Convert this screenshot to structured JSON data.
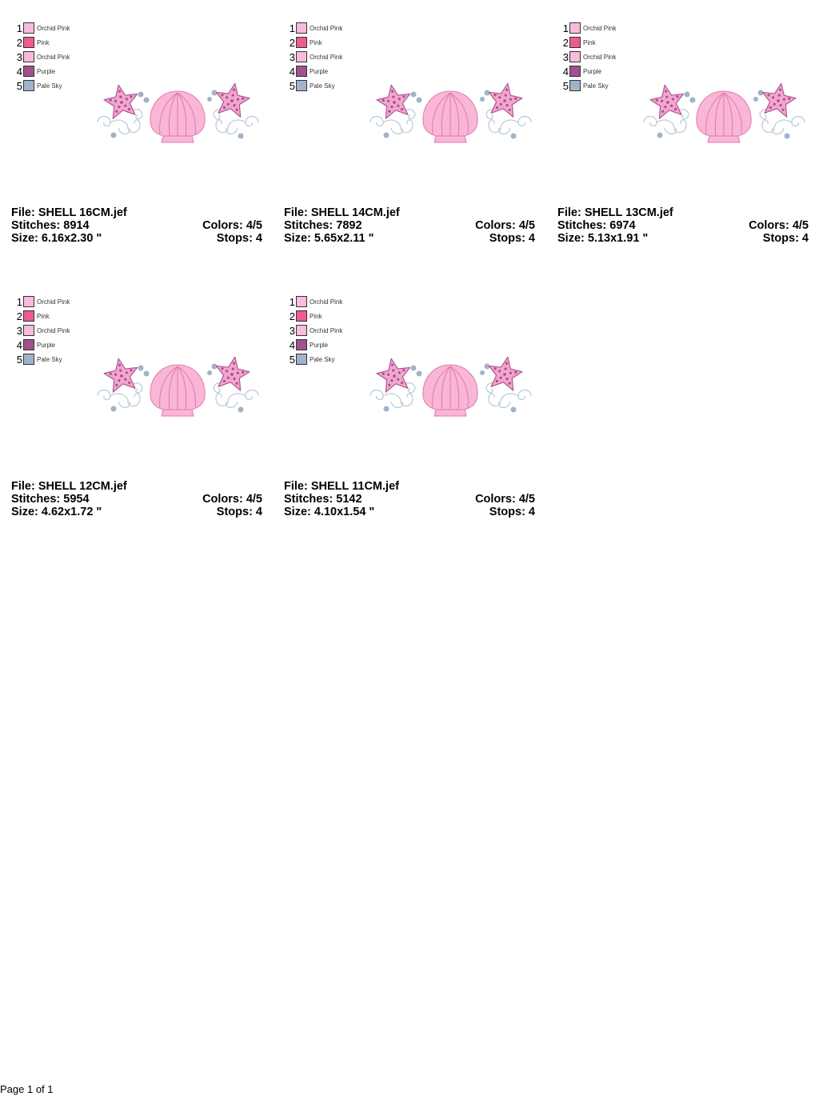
{
  "palette": [
    {
      "num": "1",
      "name": "Orchid Pink",
      "color": "#f9bcdc"
    },
    {
      "num": "2",
      "name": "Pink",
      "color": "#ef5a92"
    },
    {
      "num": "3",
      "name": "Orchid Pink",
      "color": "#f9bcdc"
    },
    {
      "num": "4",
      "name": "Purple",
      "color": "#a2508f"
    },
    {
      "num": "5",
      "name": "Pale Sky",
      "color": "#9fb4c9"
    }
  ],
  "designs": [
    {
      "file": "File: SHELL 16CM.jef",
      "stitches": "Stitches: 8914",
      "size": "Size: 6.16x2.30 \"",
      "colors": "Colors: 4/5",
      "stops": "Stops: 4"
    },
    {
      "file": "File: SHELL 14CM.jef",
      "stitches": "Stitches: 7892",
      "size": "Size: 5.65x2.11 \"",
      "colors": "Colors: 4/5",
      "stops": "Stops: 4"
    },
    {
      "file": "File: SHELL 13CM.jef",
      "stitches": "Stitches: 6974",
      "size": "Size: 5.13x1.91 \"",
      "colors": "Colors: 4/5",
      "stops": "Stops: 4"
    },
    {
      "file": "File: SHELL 12CM.jef",
      "stitches": "Stitches: 5954",
      "size": "Size: 4.62x1.72 \"",
      "colors": "Colors: 4/5",
      "stops": "Stops: 4"
    },
    {
      "file": "File: SHELL 11CM.jef",
      "stitches": "Stitches: 5142",
      "size": "Size: 4.10x1.54 \"",
      "colors": "Colors: 4/5",
      "stops": "Stops: 4"
    }
  ],
  "footer": "Page 1 of 1"
}
